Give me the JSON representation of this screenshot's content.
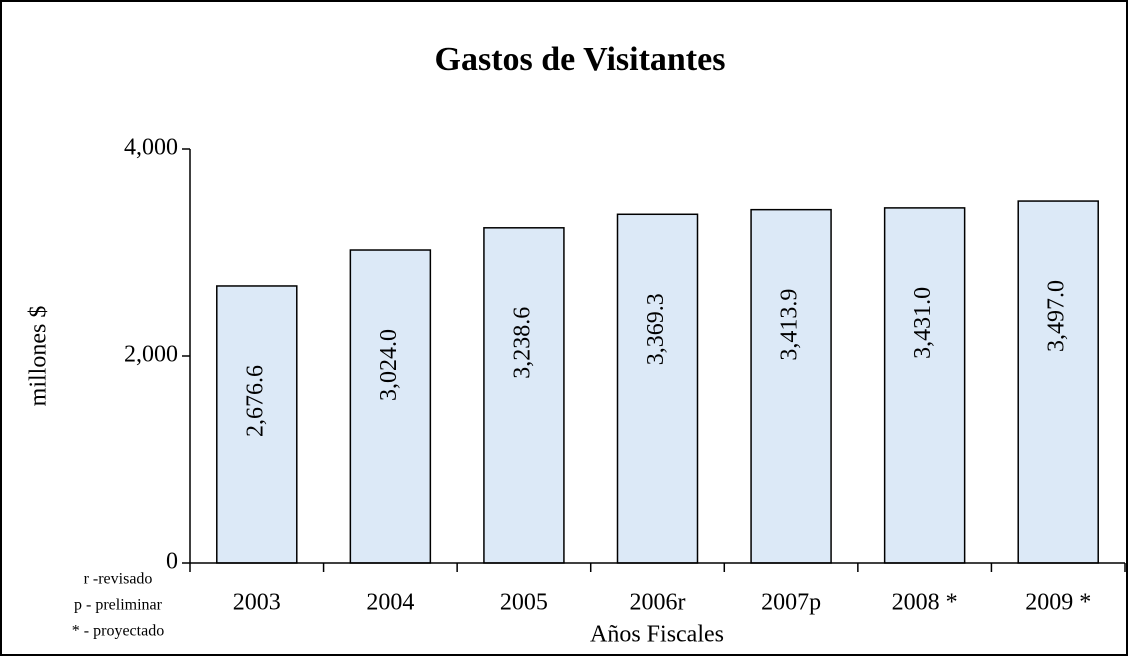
{
  "chart_data": {
    "type": "bar",
    "title": "Gastos de Visitantes",
    "categories": [
      "2003",
      "2004",
      "2005",
      "2006r",
      "2007p",
      "2008 *",
      "2009 *"
    ],
    "values": [
      2676.6,
      3024.0,
      3238.6,
      3369.3,
      3413.9,
      3431.0,
      3497.0
    ],
    "value_labels": [
      "2,676.6",
      "3,024.0",
      "3,238.6",
      "3,369.3",
      "3,413.9",
      "3,431.0",
      "3,497.0"
    ],
    "color": "#dce9f7",
    "ylim": [
      0,
      4000
    ],
    "yticks": [
      0,
      {
        "value": 2000,
        "label": "2,000"
      },
      {
        "value": 4000,
        "label": "4,000"
      }
    ],
    "ylabel": "millones $",
    "xlabel": "Años Fiscales",
    "notes": [
      "r -revisado",
      "p - preliminar",
      "* - proyectado"
    ],
    "grid": false
  }
}
